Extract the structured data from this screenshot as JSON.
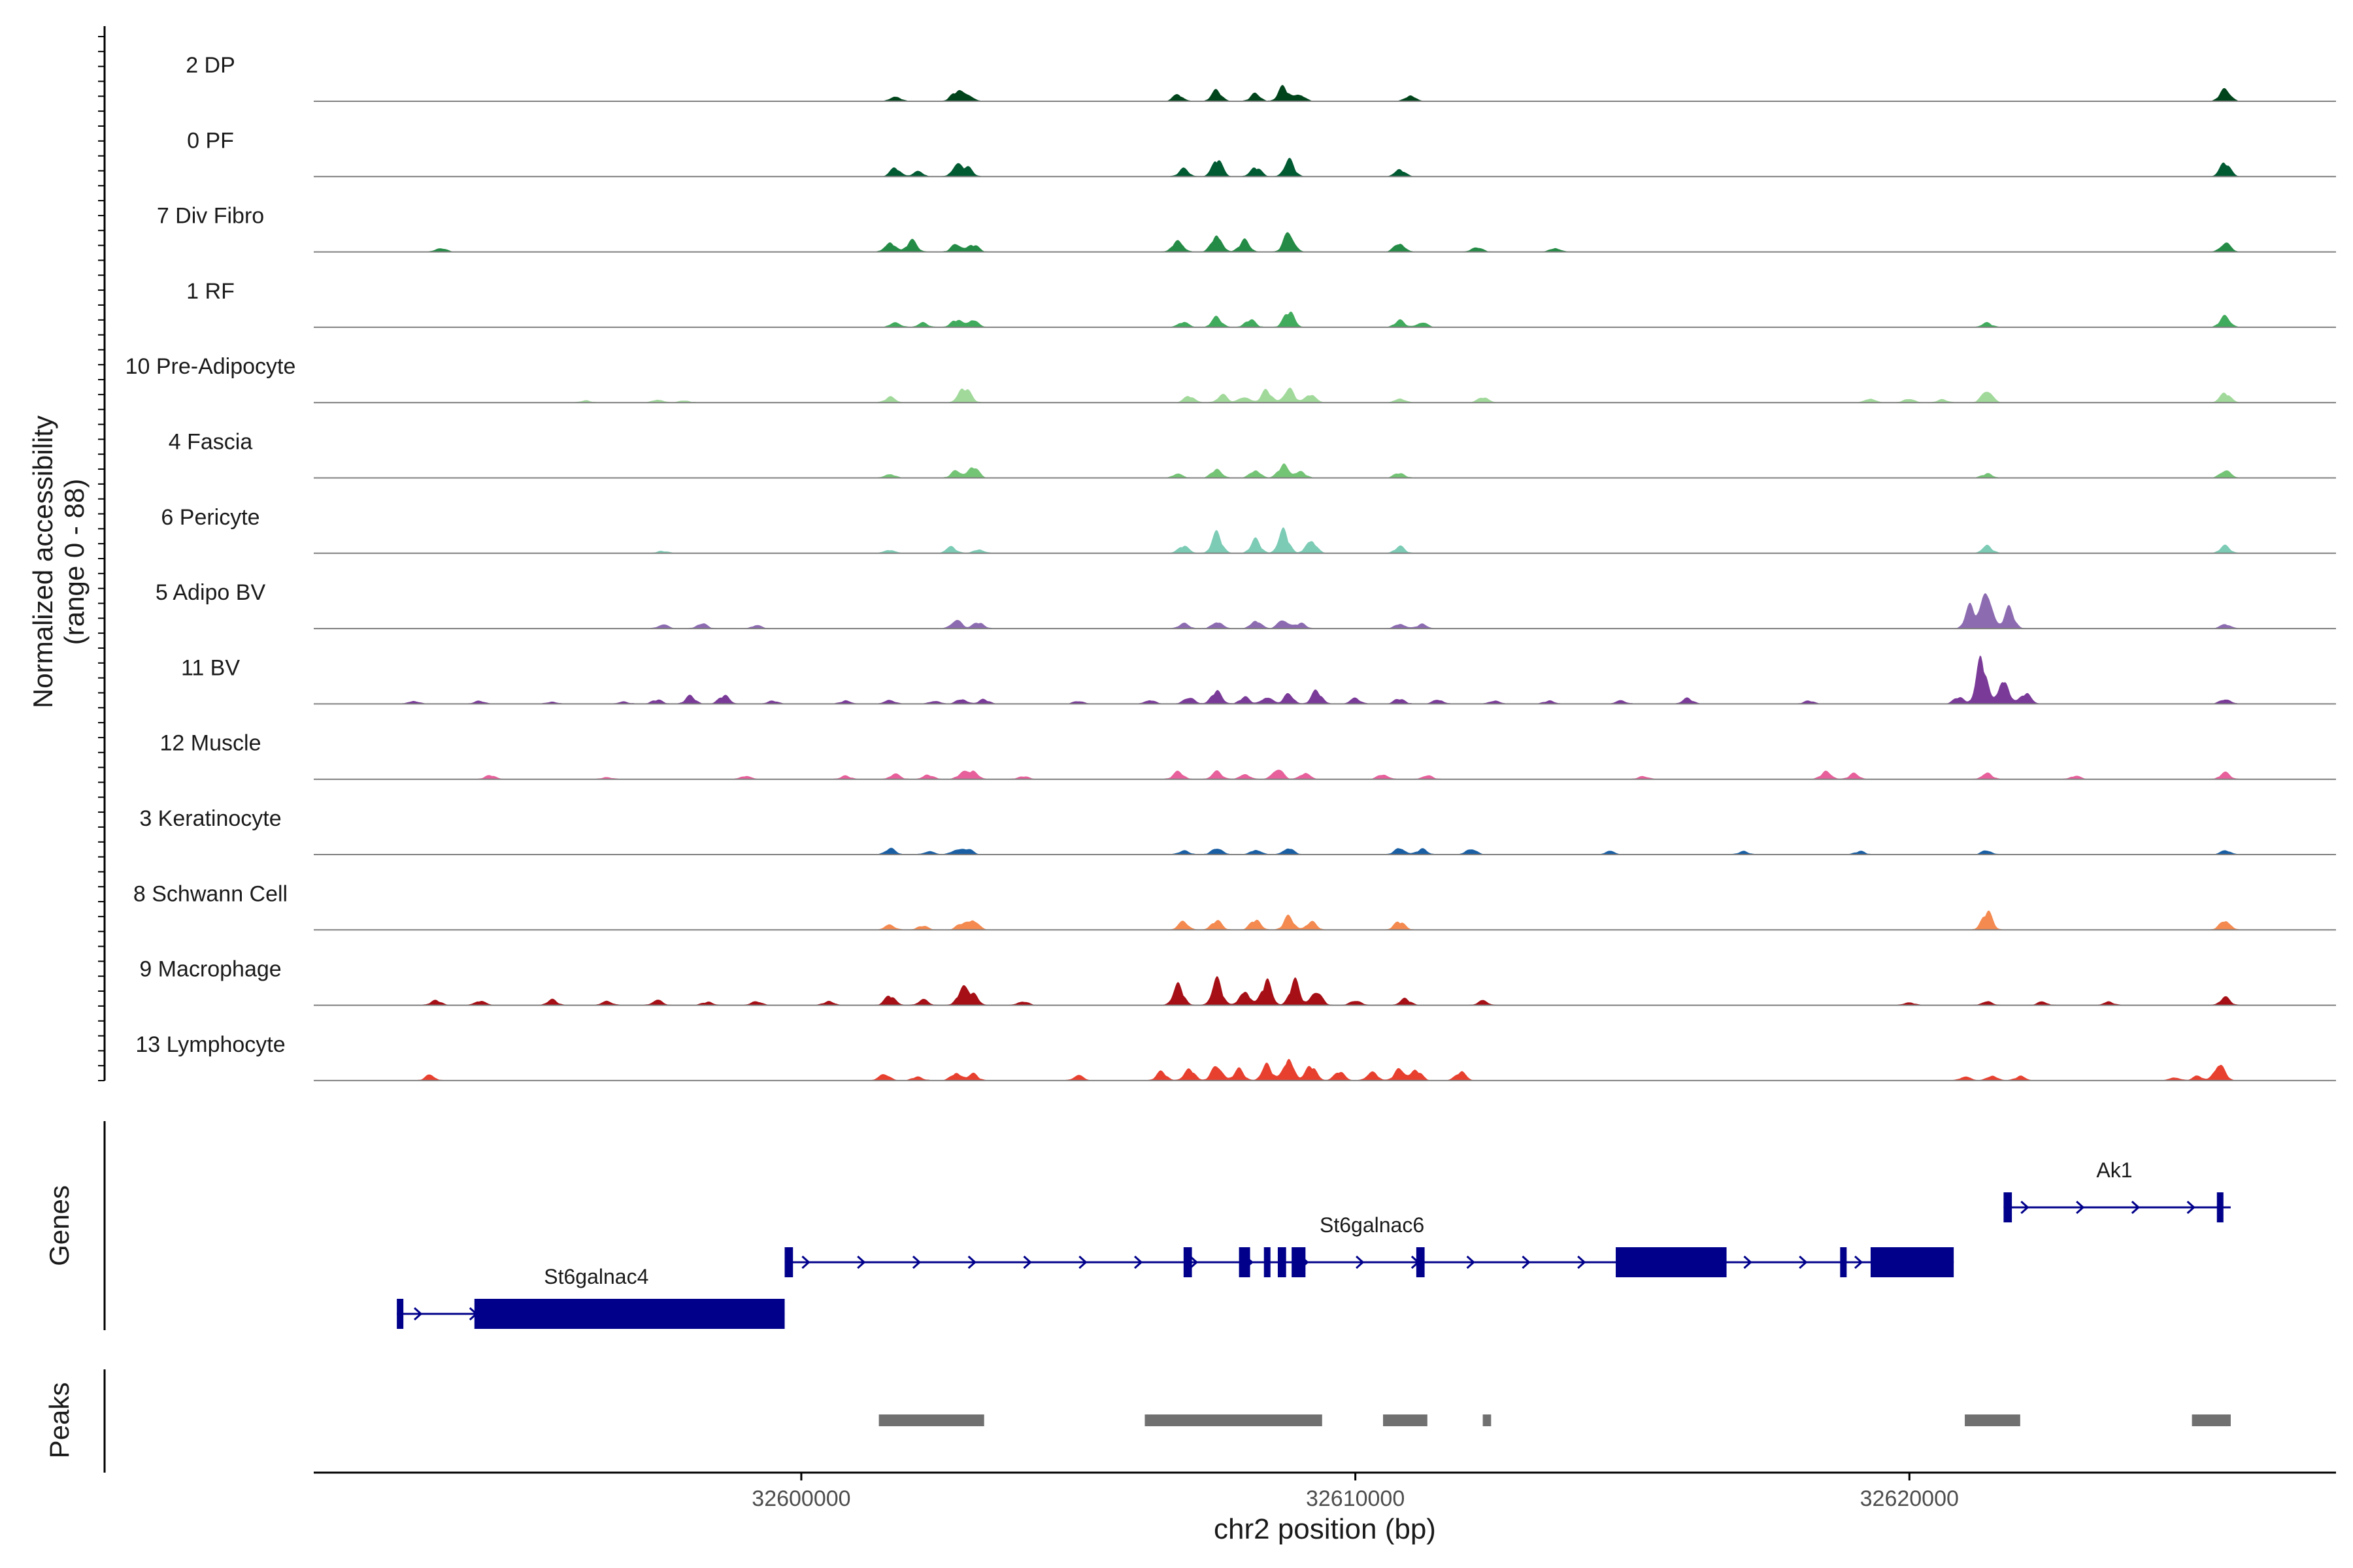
{
  "chart_data": {
    "type": "area",
    "title": "",
    "region": "chr2",
    "xlabel": "chr2 position (bp)",
    "xlim": [
      32591200,
      32627700
    ],
    "xticks": [
      32600000,
      32610000,
      32620000
    ],
    "xtick_labels": [
      "32600000",
      "32610000",
      "32620000"
    ],
    "ylabel_line1": "Normalized accessibility",
    "ylabel_line2": "(range 0 - 88)",
    "ylim": [
      0,
      88
    ],
    "genes_label": "Genes",
    "peaks_label": "Peaks",
    "signal_start": 32591200,
    "signal_end": 32626000,
    "tracks": [
      {
        "name": "2 DP",
        "color": "#00441b",
        "peaks": [
          [
            32601700,
            10
          ],
          [
            32602800,
            18
          ],
          [
            32603000,
            14
          ],
          [
            32606800,
            12
          ],
          [
            32607500,
            20
          ],
          [
            32608200,
            14
          ],
          [
            32608700,
            26
          ],
          [
            32609000,
            14
          ],
          [
            32611000,
            12
          ],
          [
            32625700,
            26
          ]
        ]
      },
      {
        "name": "0 PF",
        "color": "#005a32",
        "peaks": [
          [
            32601700,
            16
          ],
          [
            32602100,
            10
          ],
          [
            32602800,
            20
          ],
          [
            32603000,
            16
          ],
          [
            32606900,
            14
          ],
          [
            32607500,
            34
          ],
          [
            32608200,
            18
          ],
          [
            32608800,
            32
          ],
          [
            32610800,
            14
          ],
          [
            32625700,
            26
          ]
        ]
      },
      {
        "name": "7 Div Fibro",
        "color": "#238b45",
        "peaks": [
          [
            32593500,
            8
          ],
          [
            32601600,
            20
          ],
          [
            32602000,
            22
          ],
          [
            32602800,
            16
          ],
          [
            32603100,
            14
          ],
          [
            32606800,
            24
          ],
          [
            32607500,
            36
          ],
          [
            32608000,
            22
          ],
          [
            32608800,
            40
          ],
          [
            32610800,
            18
          ],
          [
            32612200,
            10
          ],
          [
            32613600,
            8
          ],
          [
            32625700,
            18
          ]
        ]
      },
      {
        "name": "1 RF",
        "color": "#41ab5d",
        "peaks": [
          [
            32601700,
            10
          ],
          [
            32602200,
            8
          ],
          [
            32602800,
            14
          ],
          [
            32603100,
            16
          ],
          [
            32606900,
            10
          ],
          [
            32607500,
            18
          ],
          [
            32608100,
            14
          ],
          [
            32608800,
            30
          ],
          [
            32610800,
            12
          ],
          [
            32611200,
            10
          ],
          [
            32621400,
            8
          ],
          [
            32625700,
            22
          ]
        ]
      },
      {
        "name": "10 Pre-Adipocyte",
        "color": "#a1d99b",
        "peaks": [
          [
            32596100,
            4
          ],
          [
            32597400,
            6
          ],
          [
            32597900,
            4
          ],
          [
            32601600,
            10
          ],
          [
            32602900,
            18
          ],
          [
            32603000,
            14
          ],
          [
            32607000,
            12
          ],
          [
            32607600,
            14
          ],
          [
            32608000,
            12
          ],
          [
            32608400,
            22
          ],
          [
            32608800,
            28
          ],
          [
            32609200,
            16
          ],
          [
            32610800,
            8
          ],
          [
            32612300,
            10
          ],
          [
            32619300,
            8
          ],
          [
            32620000,
            8
          ],
          [
            32620600,
            6
          ],
          [
            32621400,
            26
          ],
          [
            32625700,
            18
          ]
        ]
      },
      {
        "name": "4 Fascia",
        "color": "#74c476",
        "peaks": [
          [
            32601600,
            8
          ],
          [
            32602800,
            14
          ],
          [
            32603100,
            22
          ],
          [
            32606800,
            8
          ],
          [
            32607500,
            18
          ],
          [
            32608200,
            16
          ],
          [
            32608700,
            24
          ],
          [
            32609000,
            14
          ],
          [
            32610800,
            10
          ],
          [
            32621400,
            8
          ],
          [
            32625700,
            16
          ]
        ]
      },
      {
        "name": "6 Pericyte",
        "color": "#7ccbb5",
        "peaks": [
          [
            32597500,
            4
          ],
          [
            32601600,
            6
          ],
          [
            32602700,
            12
          ],
          [
            32603200,
            8
          ],
          [
            32606900,
            14
          ],
          [
            32607500,
            36
          ],
          [
            32608200,
            24
          ],
          [
            32608700,
            44
          ],
          [
            32609200,
            28
          ],
          [
            32610800,
            12
          ],
          [
            32621400,
            14
          ],
          [
            32625700,
            14
          ]
        ]
      },
      {
        "name": "5 Adipo BV",
        "color": "#8c6bb1",
        "peaks": [
          [
            32597500,
            8
          ],
          [
            32598200,
            10
          ],
          [
            32599200,
            6
          ],
          [
            32602800,
            18
          ],
          [
            32603200,
            12
          ],
          [
            32606900,
            10
          ],
          [
            32607500,
            14
          ],
          [
            32608200,
            16
          ],
          [
            32608700,
            18
          ],
          [
            32609000,
            10
          ],
          [
            32610800,
            10
          ],
          [
            32611200,
            8
          ],
          [
            32621100,
            40
          ],
          [
            32621400,
            78
          ],
          [
            32621800,
            36
          ],
          [
            32625700,
            8
          ]
        ]
      },
      {
        "name": "11 BV",
        "color": "#7a3a98",
        "peaks": [
          [
            32593000,
            6
          ],
          [
            32594200,
            6
          ],
          [
            32595500,
            4
          ],
          [
            32596800,
            4
          ],
          [
            32597400,
            8
          ],
          [
            32598000,
            14
          ],
          [
            32598600,
            16
          ],
          [
            32599500,
            6
          ],
          [
            32600800,
            6
          ],
          [
            32601600,
            8
          ],
          [
            32602400,
            6
          ],
          [
            32602900,
            10
          ],
          [
            32603300,
            8
          ],
          [
            32605000,
            6
          ],
          [
            32606300,
            8
          ],
          [
            32607000,
            14
          ],
          [
            32607500,
            26
          ],
          [
            32608000,
            12
          ],
          [
            32608400,
            14
          ],
          [
            32608800,
            18
          ],
          [
            32609300,
            24
          ],
          [
            32610000,
            10
          ],
          [
            32610800,
            10
          ],
          [
            32611500,
            8
          ],
          [
            32612500,
            6
          ],
          [
            32613500,
            6
          ],
          [
            32614800,
            6
          ],
          [
            32616000,
            10
          ],
          [
            32618200,
            6
          ],
          [
            32620900,
            14
          ],
          [
            32621300,
            84
          ],
          [
            32621700,
            52
          ],
          [
            32622100,
            20
          ],
          [
            32625700,
            10
          ]
        ]
      },
      {
        "name": "12 Muscle",
        "color": "#e7609b",
        "peaks": [
          [
            32594400,
            8
          ],
          [
            32596500,
            4
          ],
          [
            32599000,
            6
          ],
          [
            32600800,
            6
          ],
          [
            32601700,
            10
          ],
          [
            32602300,
            8
          ],
          [
            32602900,
            10
          ],
          [
            32603100,
            16
          ],
          [
            32604000,
            6
          ],
          [
            32606800,
            14
          ],
          [
            32607500,
            14
          ],
          [
            32608000,
            10
          ],
          [
            32608600,
            22
          ],
          [
            32609100,
            12
          ],
          [
            32610500,
            10
          ],
          [
            32611300,
            8
          ],
          [
            32615200,
            6
          ],
          [
            32618500,
            16
          ],
          [
            32619000,
            10
          ],
          [
            32621400,
            12
          ],
          [
            32623000,
            6
          ],
          [
            32625700,
            12
          ]
        ]
      },
      {
        "name": "3 Keratinocyte",
        "color": "#1a5fa3",
        "peaks": [
          [
            32601600,
            12
          ],
          [
            32602300,
            6
          ],
          [
            32602800,
            10
          ],
          [
            32603000,
            10
          ],
          [
            32606900,
            8
          ],
          [
            32607500,
            14
          ],
          [
            32608200,
            10
          ],
          [
            32608800,
            14
          ],
          [
            32610800,
            14
          ],
          [
            32611200,
            10
          ],
          [
            32612100,
            12
          ],
          [
            32614600,
            6
          ],
          [
            32617000,
            6
          ],
          [
            32619100,
            6
          ],
          [
            32621400,
            8
          ],
          [
            32625700,
            8
          ]
        ]
      },
      {
        "name": "8 Schwann Cell",
        "color": "#f48a50",
        "peaks": [
          [
            32601600,
            10
          ],
          [
            32602200,
            8
          ],
          [
            32602900,
            12
          ],
          [
            32603100,
            20
          ],
          [
            32606900,
            16
          ],
          [
            32607500,
            18
          ],
          [
            32608200,
            20
          ],
          [
            32608800,
            24
          ],
          [
            32609200,
            16
          ],
          [
            32610800,
            16
          ],
          [
            32621400,
            34
          ],
          [
            32625700,
            20
          ]
        ]
      },
      {
        "name": "9 Macrophage",
        "color": "#a50f15",
        "peaks": [
          [
            32593400,
            10
          ],
          [
            32594200,
            8
          ],
          [
            32595500,
            10
          ],
          [
            32596500,
            8
          ],
          [
            32597400,
            10
          ],
          [
            32598300,
            6
          ],
          [
            32599200,
            8
          ],
          [
            32600500,
            8
          ],
          [
            32601600,
            18
          ],
          [
            32602200,
            10
          ],
          [
            32602900,
            28
          ],
          [
            32603100,
            22
          ],
          [
            32604000,
            8
          ],
          [
            32606800,
            40
          ],
          [
            32607500,
            48
          ],
          [
            32608000,
            30
          ],
          [
            32608400,
            46
          ],
          [
            32608900,
            44
          ],
          [
            32609300,
            30
          ],
          [
            32610000,
            10
          ],
          [
            32610900,
            12
          ],
          [
            32612300,
            8
          ],
          [
            32620000,
            6
          ],
          [
            32621400,
            8
          ],
          [
            32622400,
            6
          ],
          [
            32623600,
            6
          ],
          [
            32625700,
            14
          ]
        ]
      },
      {
        "name": "13 Lymphocyte",
        "color": "#e8402f",
        "peaks": [
          [
            32593300,
            10
          ],
          [
            32601500,
            14
          ],
          [
            32602100,
            8
          ],
          [
            32602800,
            16
          ],
          [
            32603100,
            12
          ],
          [
            32605000,
            10
          ],
          [
            32606500,
            16
          ],
          [
            32607000,
            24
          ],
          [
            32607500,
            32
          ],
          [
            32607900,
            20
          ],
          [
            32608400,
            30
          ],
          [
            32608800,
            46
          ],
          [
            32609200,
            28
          ],
          [
            32609700,
            18
          ],
          [
            32610300,
            18
          ],
          [
            32610800,
            24
          ],
          [
            32611100,
            20
          ],
          [
            32611900,
            16
          ],
          [
            32621000,
            8
          ],
          [
            32621500,
            10
          ],
          [
            32622000,
            8
          ],
          [
            32624800,
            6
          ],
          [
            32625200,
            8
          ],
          [
            32625600,
            36
          ]
        ]
      }
    ],
    "genes": [
      {
        "name": "St6galnac4",
        "row": 2,
        "start": 32592700,
        "end": 32599700,
        "strand": "+",
        "exons": [
          [
            32592700,
            32592800
          ],
          [
            32594100,
            32599700
          ]
        ]
      },
      {
        "name": "St6galnac6",
        "row": 1,
        "start": 32599700,
        "end": 32620800,
        "strand": "+",
        "exons": [
          [
            32599700,
            32599850
          ],
          [
            32606900,
            32607050
          ],
          [
            32607900,
            32608100
          ],
          [
            32608350,
            32608430
          ],
          [
            32608600,
            32608750
          ],
          [
            32608850,
            32609100
          ],
          [
            32611100,
            32611250
          ],
          [
            32614700,
            32616700
          ],
          [
            32618750,
            32618850
          ],
          [
            32619300,
            32620800
          ]
        ]
      },
      {
        "name": "Ak1",
        "row": 0,
        "start": 32621700,
        "end": 32625800,
        "strand": "+",
        "exons": [
          [
            32621700,
            32621850
          ],
          [
            32625550,
            32625650
          ]
        ]
      }
    ],
    "peaks": [
      [
        32601400,
        32603300
      ],
      [
        32606200,
        32609400
      ],
      [
        32610500,
        32611300
      ],
      [
        32612300,
        32612450
      ],
      [
        32621000,
        32622000
      ],
      [
        32625100,
        32625800
      ]
    ]
  }
}
